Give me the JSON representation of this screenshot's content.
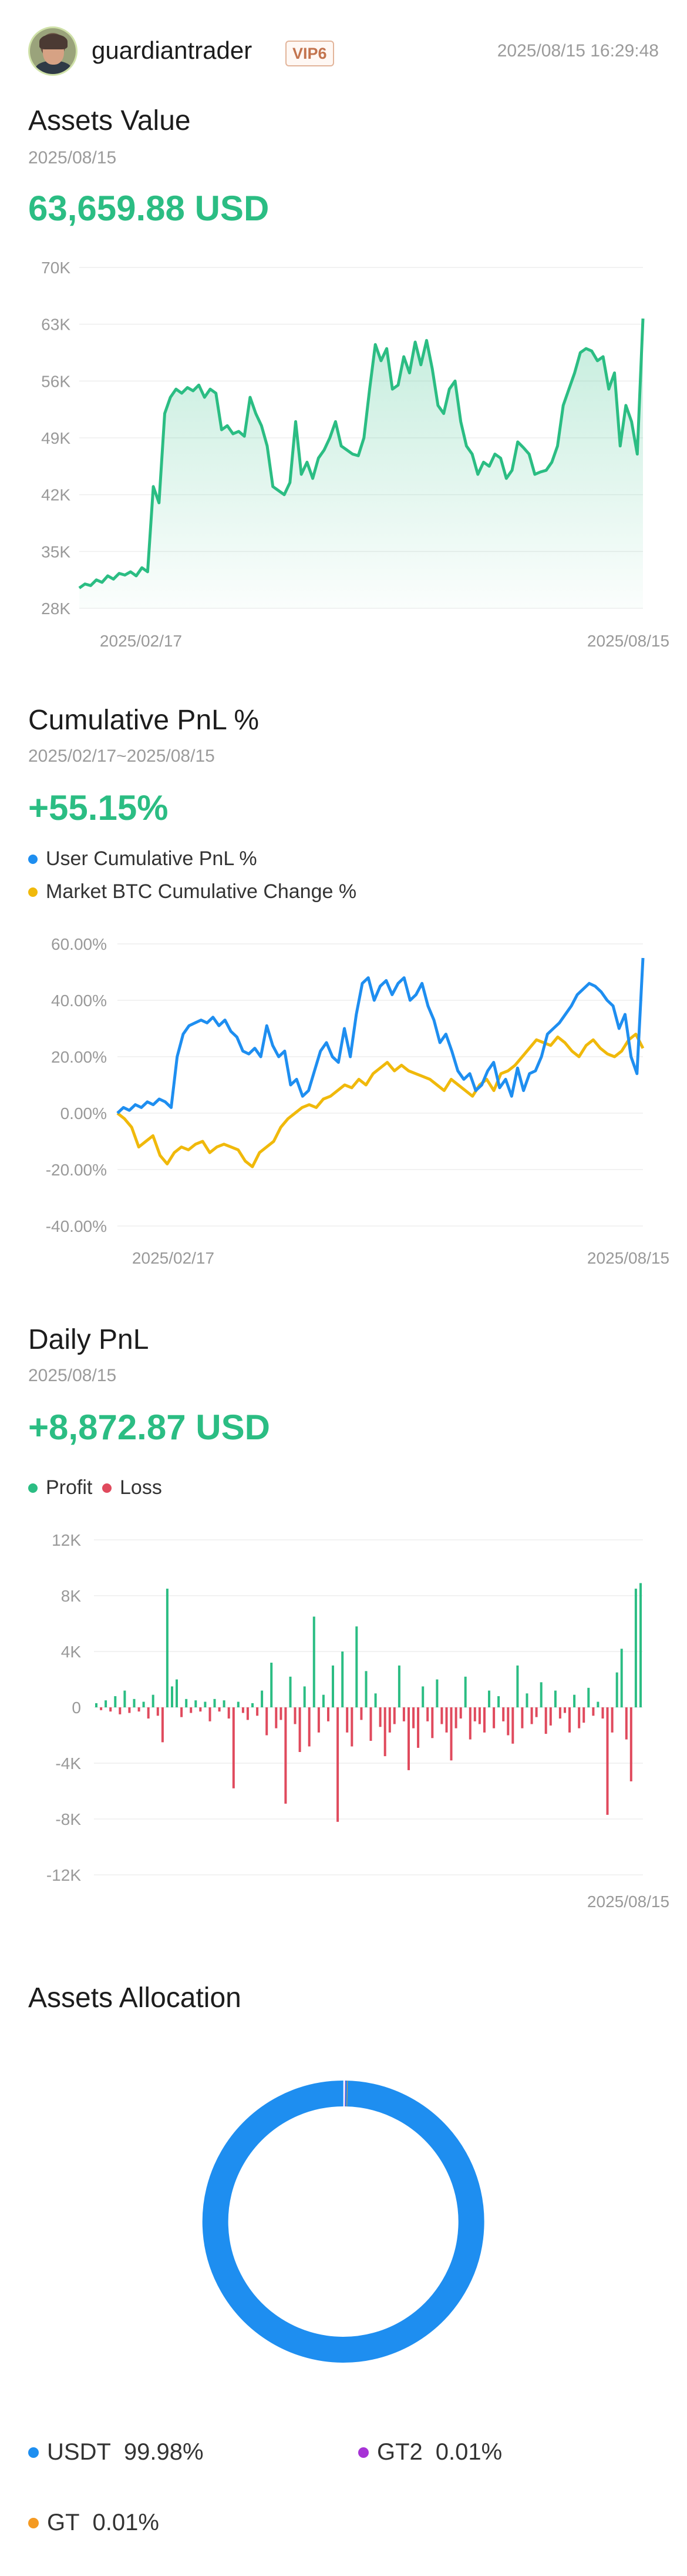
{
  "header": {
    "username": "guardiantrader",
    "vip": "VIP6",
    "timestamp": "2025/08/15 16:29:48"
  },
  "assets_value": {
    "title": "Assets Value",
    "date": "2025/08/15",
    "value": "63,659.88 USD"
  },
  "cumulative_pnl": {
    "title": "Cumulative PnL %",
    "range": "2025/02/17~2025/08/15",
    "value": "+55.15%",
    "legend": [
      {
        "label": "User Cumulative PnL %",
        "color": "#1e8ef0"
      },
      {
        "label": "Market BTC Cumulative Change %",
        "color": "#f0b90b"
      }
    ]
  },
  "daily_pnl": {
    "title": "Daily PnL",
    "date": "2025/08/15",
    "value": "+8,872.87 USD",
    "legend": [
      {
        "label": "Profit",
        "color": "#2bbd83"
      },
      {
        "label": "Loss",
        "color": "#e04a5d"
      }
    ]
  },
  "allocation": {
    "title": "Assets Allocation",
    "items": [
      {
        "asset": "USDT",
        "pct": "99.98%",
        "color": "#1e8ef0"
      },
      {
        "asset": "GT2",
        "pct": "0.01%",
        "color": "#a733d6"
      },
      {
        "asset": "GT",
        "pct": "0.01%",
        "color": "#f49a22"
      }
    ]
  },
  "chart_data": [
    {
      "type": "area",
      "title": "Assets Value",
      "x_tick_labels": [
        "2025/02/17",
        "2025/08/15"
      ],
      "y_tick_labels": [
        "70K",
        "63K",
        "56K",
        "49K",
        "42K",
        "35K",
        "28K"
      ],
      "ylim": [
        28000,
        70000
      ],
      "grid": true,
      "color": "#2bbd83",
      "series": [
        {
          "values": [
            30500,
            31000,
            30800,
            31500,
            31200,
            32000,
            31600,
            32300,
            32100,
            32500,
            32000,
            33000,
            32500,
            43000,
            41000,
            52000,
            54000,
            55000,
            54500,
            55200,
            54800,
            55500,
            54000,
            55000,
            54500,
            50000,
            50500,
            49500,
            49800,
            49200,
            54000,
            52000,
            50500,
            48000,
            43000,
            42500,
            42000,
            43500,
            51000,
            44500,
            46000,
            44000,
            46500,
            47500,
            49000,
            51000,
            48000,
            47500,
            47000,
            46800,
            49000,
            55000,
            60500,
            58500,
            60000,
            55000,
            55500,
            59000,
            57000,
            60800,
            58000,
            61000,
            57500,
            53000,
            52000,
            55000,
            56000,
            51000,
            48000,
            47000,
            44500,
            46000,
            45500,
            47000,
            46500,
            44000,
            45000,
            48500,
            47800,
            47000,
            44500,
            44800,
            45000,
            46000,
            48000,
            53000,
            55000,
            57000,
            59500,
            60000,
            59700,
            58500,
            59000,
            55000,
            57000,
            48000,
            53000,
            51000,
            47000,
            63700
          ]
        }
      ]
    },
    {
      "type": "line",
      "title": "Cumulative PnL %",
      "x_tick_labels": [
        "2025/02/17",
        "2025/08/15"
      ],
      "y_tick_labels": [
        "60.00%",
        "40.00%",
        "20.00%",
        "0.00%",
        "-20.00%",
        "-40.00%"
      ],
      "ylim": [
        -40,
        60
      ],
      "grid": true,
      "series": [
        {
          "name": "User Cumulative PnL %",
          "color": "#1e8ef0",
          "values": [
            0,
            2,
            1,
            3,
            2,
            4,
            3,
            5,
            4,
            2,
            20,
            28,
            31,
            32,
            33,
            32,
            34,
            31,
            33,
            29,
            27,
            22,
            21,
            23,
            20,
            31,
            24,
            20,
            22,
            10,
            12,
            6,
            8,
            15,
            22,
            25,
            20,
            18,
            30,
            20,
            35,
            46,
            48,
            40,
            45,
            47,
            42,
            46,
            48,
            40,
            42,
            46,
            38,
            33,
            25,
            28,
            22,
            15,
            12,
            14,
            8,
            10,
            15,
            18,
            9,
            12,
            6,
            16,
            8,
            14,
            15,
            20,
            28,
            30,
            32,
            35,
            38,
            42,
            44,
            46,
            45,
            43,
            40,
            38,
            30,
            35,
            20,
            14,
            55
          ]
        },
        {
          "name": "Market BTC Cumulative Change %",
          "color": "#f0b90b",
          "values": [
            0,
            -2,
            -5,
            -12,
            -10,
            -8,
            -15,
            -18,
            -14,
            -12,
            -13,
            -11,
            -10,
            -14,
            -12,
            -11,
            -12,
            -13,
            -17,
            -19,
            -14,
            -12,
            -10,
            -5,
            -2,
            0,
            2,
            3,
            2,
            5,
            6,
            8,
            10,
            9,
            12,
            10,
            14,
            16,
            18,
            15,
            17,
            15,
            14,
            13,
            12,
            10,
            8,
            12,
            10,
            8,
            6,
            10,
            12,
            8,
            14,
            15,
            17,
            20,
            23,
            26,
            25,
            24,
            27,
            25,
            22,
            20,
            24,
            26,
            23,
            21,
            20,
            22,
            26,
            28,
            23
          ]
        }
      ]
    },
    {
      "type": "bar",
      "title": "Daily PnL",
      "x_tick_labels": [
        "2025/08/15"
      ],
      "y_tick_labels": [
        "12K",
        "8K",
        "4K",
        "0",
        "-4K",
        "-8K",
        "-12K"
      ],
      "ylim": [
        -12000,
        12000
      ],
      "grid": true,
      "series": [
        {
          "name": "Daily PnL",
          "values": [
            300,
            -200,
            500,
            -300,
            800,
            -500,
            1200,
            -400,
            600,
            -300,
            400,
            -800,
            900,
            -600,
            -2500,
            8500,
            1500,
            2000,
            -700,
            600,
            -400,
            500,
            -300,
            400,
            -1000,
            600,
            -300,
            500,
            -800,
            -5800,
            400,
            -400,
            -900,
            300,
            -600,
            1200,
            -2000,
            3200,
            -1500,
            -900,
            -6900,
            2200,
            -1200,
            -3200,
            1500,
            -2800,
            6500,
            -1800,
            900,
            -1000,
            3000,
            -8200,
            4000,
            -1800,
            -2800,
            5800,
            -900,
            2600,
            -2400,
            1000,
            -1400,
            -3500,
            -1800,
            -1200,
            3000,
            -1000,
            -4500,
            -1500,
            -2900,
            1500,
            -1000,
            -2200,
            2000,
            -1200,
            -1800,
            -3800,
            -1500,
            -800,
            2200,
            -2300,
            -1000,
            -1200,
            -1800,
            1200,
            -1500,
            800,
            -1000,
            -2000,
            -2600,
            3000,
            -1500,
            1000,
            -1200,
            -700,
            1800,
            -1900,
            -1300,
            1200,
            -800,
            -400,
            -1800,
            900,
            -1500,
            -1100,
            1400,
            -600,
            400,
            -800,
            -7700,
            -1800,
            2500,
            4200,
            -2300,
            -5300,
            8500,
            8900
          ]
        }
      ]
    },
    {
      "type": "pie",
      "title": "Assets Allocation",
      "categories": [
        "USDT",
        "GT2",
        "GT"
      ],
      "values": [
        99.98,
        0.01,
        0.01
      ]
    }
  ]
}
